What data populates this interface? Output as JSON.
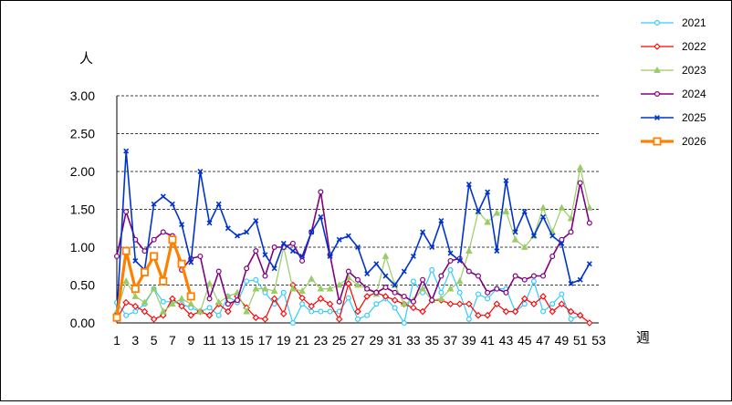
{
  "chart_data": {
    "type": "line",
    "title": "",
    "ylabel": "人",
    "xlabel": "週",
    "ylim": [
      0,
      3
    ],
    "xlim": [
      1,
      53
    ],
    "yticks": [
      "0.00",
      "0.50",
      "1.00",
      "1.50",
      "2.00",
      "2.50",
      "3.00"
    ],
    "xticks": [
      "1",
      "3",
      "5",
      "7",
      "9",
      "11",
      "13",
      "15",
      "17",
      "19",
      "21",
      "23",
      "25",
      "27",
      "29",
      "31",
      "33",
      "35",
      "37",
      "39",
      "41",
      "43",
      "45",
      "47",
      "49",
      "51",
      "53"
    ],
    "grid": "horizontal-dashed",
    "legend_position": "right",
    "series": [
      {
        "name": "2021",
        "color": "#33ccff",
        "marker": "circle",
        "width": 1.2,
        "values": [
          0.27,
          0.1,
          0.15,
          0.25,
          0.45,
          0.28,
          0.28,
          0.25,
          0.2,
          0.15,
          0.2,
          0.1,
          0.35,
          0.27,
          0.55,
          0.57,
          0.4,
          0.25,
          0.4,
          0.0,
          0.25,
          0.15,
          0.15,
          0.15,
          0.15,
          0.33,
          0.05,
          0.1,
          0.25,
          0.32,
          0.2,
          0.0,
          0.55,
          0.4,
          0.7,
          0.4,
          0.7,
          0.4,
          0.05,
          0.38,
          0.32,
          0.45,
          0.45,
          0.15,
          0.25,
          0.55,
          0.15,
          0.25,
          0.38,
          0.05,
          0.1
        ]
      },
      {
        "name": "2022",
        "color": "#ff0000",
        "marker": "diamond",
        "width": 1.2,
        "values": [
          0.05,
          0.27,
          0.22,
          0.15,
          0.05,
          0.1,
          0.32,
          0.22,
          0.1,
          0.15,
          0.1,
          0.25,
          0.15,
          0.35,
          0.2,
          0.07,
          0.05,
          0.32,
          0.12,
          0.5,
          0.33,
          0.22,
          0.32,
          0.25,
          0.05,
          0.52,
          0.15,
          0.35,
          0.4,
          0.35,
          0.3,
          0.25,
          0.2,
          0.15,
          0.3,
          0.3,
          0.25,
          0.25,
          0.25,
          0.1,
          0.1,
          0.25,
          0.15,
          0.15,
          0.32,
          0.25,
          0.35,
          0.15,
          0.25,
          0.15,
          0.1,
          0.0
        ]
      },
      {
        "name": "2023",
        "color": "#99cc66",
        "marker": "triangle",
        "width": 1.2,
        "values": [
          0.15,
          0.55,
          0.35,
          0.27,
          0.45,
          0.15,
          0.25,
          0.32,
          0.25,
          0.15,
          0.52,
          0.27,
          0.35,
          0.4,
          0.15,
          0.45,
          0.45,
          0.42,
          1.0,
          0.45,
          0.42,
          0.58,
          0.45,
          0.45,
          0.5,
          0.6,
          0.5,
          0.45,
          0.38,
          0.88,
          0.5,
          0.25,
          0.3,
          0.45,
          0.3,
          0.32,
          0.45,
          0.55,
          0.95,
          1.47,
          1.33,
          1.45,
          1.47,
          1.1,
          1.0,
          1.15,
          1.52,
          1.2,
          1.52,
          1.38,
          2.05,
          1.52
        ]
      },
      {
        "name": "2024",
        "color": "#800080",
        "marker": "circle",
        "width": 1.6,
        "values": [
          0.88,
          1.47,
          1.1,
          0.95,
          1.1,
          1.2,
          1.15,
          0.7,
          0.85,
          0.88,
          0.32,
          0.68,
          0.25,
          0.3,
          0.72,
          0.95,
          0.62,
          1.0,
          1.0,
          1.05,
          0.82,
          1.2,
          1.73,
          0.9,
          0.28,
          0.68,
          0.57,
          0.45,
          0.4,
          0.47,
          0.4,
          0.35,
          0.28,
          0.57,
          0.3,
          0.62,
          0.82,
          0.85,
          0.68,
          0.62,
          0.4,
          0.45,
          0.4,
          0.62,
          0.57,
          0.62,
          0.62,
          0.88,
          1.1,
          1.2,
          1.85,
          1.32
        ]
      },
      {
        "name": "2025",
        "color": "#0033cc",
        "marker": "x",
        "width": 1.6,
        "values": [
          0.1,
          2.27,
          0.82,
          0.7,
          1.57,
          1.67,
          1.57,
          1.3,
          0.8,
          2.0,
          1.32,
          1.57,
          1.25,
          1.15,
          1.2,
          1.35,
          0.9,
          0.72,
          1.05,
          0.95,
          0.88,
          1.2,
          1.4,
          0.88,
          1.1,
          1.15,
          1.0,
          0.65,
          0.78,
          0.62,
          0.5,
          0.68,
          0.88,
          1.2,
          1.0,
          1.35,
          0.92,
          0.82,
          1.83,
          1.47,
          1.73,
          0.95,
          1.88,
          1.2,
          1.47,
          1.15,
          1.4,
          1.15,
          1.05,
          0.52,
          0.57,
          0.78
        ]
      },
      {
        "name": "2026",
        "color": "#ff8000",
        "marker": "square",
        "width": 3.2,
        "values": [
          0.07,
          0.95,
          0.45,
          0.67,
          0.88,
          0.55,
          1.1,
          0.78,
          0.35
        ]
      }
    ]
  }
}
